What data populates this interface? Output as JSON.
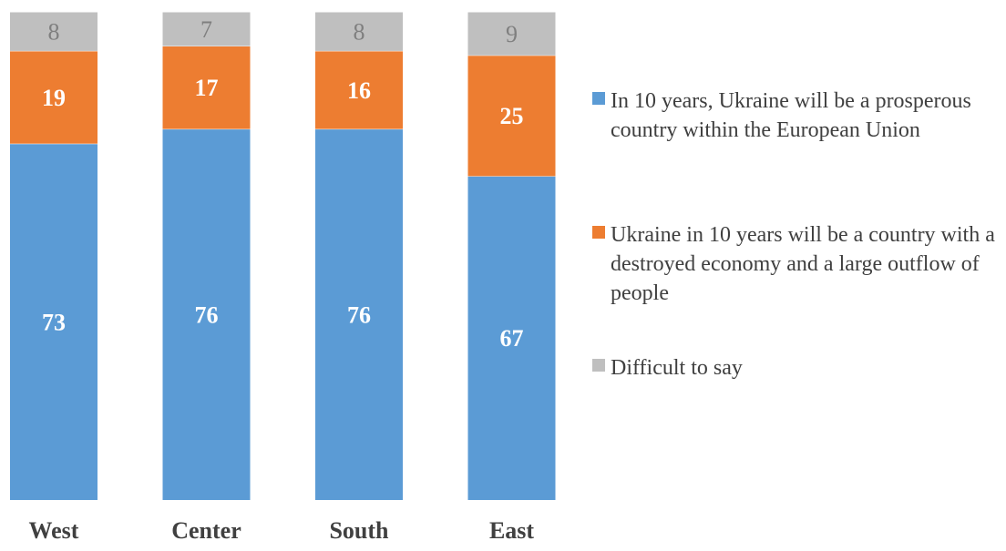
{
  "chart_data": {
    "type": "bar",
    "stacked": true,
    "percent": true,
    "categories": [
      "West",
      "Center",
      "South",
      "East"
    ],
    "series": [
      {
        "name": "In 10 years, Ukraine will be a prosperous country within the European Union",
        "values": [
          73,
          76,
          76,
          67
        ],
        "color": "#5b9bd5"
      },
      {
        "name": "Ukraine in 10 years will be a country with a destroyed economy and a large outflow of people",
        "values": [
          19,
          17,
          16,
          25
        ],
        "color": "#ed7d31"
      },
      {
        "name": "Difficult to say",
        "values": [
          8,
          7,
          8,
          9
        ],
        "color": "#bfbfbf"
      }
    ],
    "data_label_colors": [
      "#ffffff",
      "#ffffff",
      "#7f7f7f"
    ],
    "legend_position": "right",
    "grid": false
  }
}
